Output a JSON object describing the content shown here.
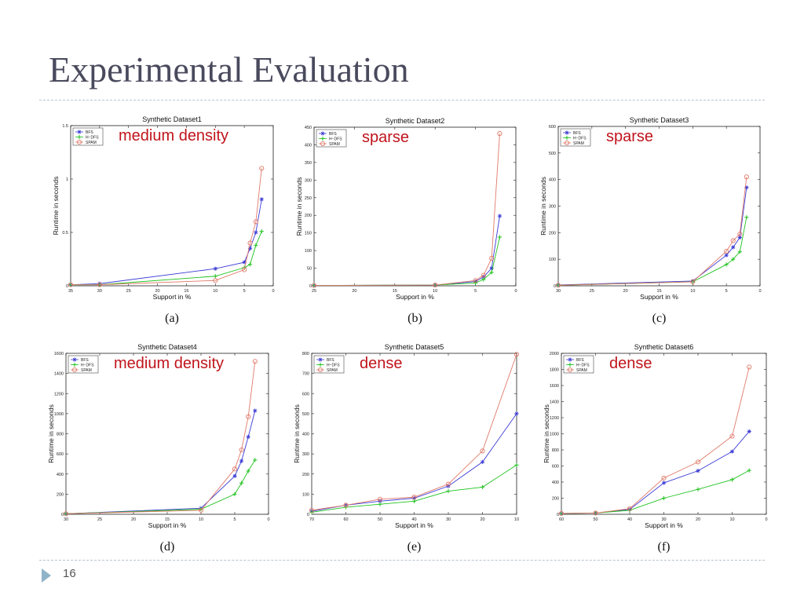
{
  "slide": {
    "title": "Experimental Evaluation",
    "page_number": "16"
  },
  "colors": {
    "BFS": "#3b3bd6",
    "H-DFS": "#1fc21f",
    "SPAM": "#e07a6a",
    "annotation": "#c0141c"
  },
  "chart_data": [
    {
      "type": "line",
      "title": "Synthetic Dataset1",
      "xlabel": "Support in %",
      "ylabel": "Runtime in seconds",
      "xlim": [
        35,
        0
      ],
      "ylim": [
        0,
        1.5
      ],
      "xticks": [
        35,
        30,
        25,
        20,
        15,
        10,
        5,
        0
      ],
      "yticks": [
        0,
        0.5,
        1,
        1.5
      ],
      "xticklabels": [
        "35",
        "30",
        "25",
        "20",
        "15",
        "10",
        "5",
        "0"
      ],
      "yticklabels": [
        "0",
        "0.5",
        "1",
        "1.5"
      ],
      "legend": [
        "BFS",
        "H−DFS",
        "SPAM"
      ],
      "legend_position": "top-left",
      "annotation": "medium density",
      "caption": "(a)",
      "series": [
        {
          "name": "BFS",
          "marker": "star",
          "points": [
            [
              35,
              0.01
            ],
            [
              30,
              0.02
            ],
            [
              10,
              0.16
            ],
            [
              5,
              0.22
            ],
            [
              4,
              0.35
            ],
            [
              3,
              0.5
            ],
            [
              2,
              0.81
            ]
          ]
        },
        {
          "name": "H−DFS",
          "marker": "plus",
          "points": [
            [
              35,
              0.01
            ],
            [
              30,
              0.01
            ],
            [
              10,
              0.09
            ],
            [
              5,
              0.17
            ],
            [
              4,
              0.2
            ],
            [
              3,
              0.38
            ],
            [
              2,
              0.51
            ]
          ]
        },
        {
          "name": "SPAM",
          "marker": "circle",
          "points": [
            [
              35,
              0.01
            ],
            [
              30,
              0.01
            ],
            [
              10,
              0.05
            ],
            [
              5,
              0.15
            ],
            [
              4,
              0.4
            ],
            [
              3,
              0.6
            ],
            [
              2,
              1.1
            ]
          ]
        }
      ]
    },
    {
      "type": "line",
      "title": "Synthetic Dataset2",
      "xlabel": "Support in %",
      "ylabel": "Runtime in seconds",
      "xlim": [
        25,
        0
      ],
      "ylim": [
        0,
        450
      ],
      "xticks": [
        25,
        20,
        15,
        10,
        5,
        0
      ],
      "yticks": [
        0,
        50,
        100,
        150,
        200,
        250,
        300,
        350,
        400,
        450
      ],
      "xticklabels": [
        "25",
        "20",
        "15",
        "10",
        "5",
        "0"
      ],
      "yticklabels": [
        "0",
        "50",
        "100",
        "150",
        "200",
        "250",
        "300",
        "350",
        "400",
        "450"
      ],
      "legend": [
        "BFS",
        "H−DFS",
        "SPAM"
      ],
      "legend_position": "top-left",
      "annotation": "sparse",
      "caption": "(b)",
      "series": [
        {
          "name": "BFS",
          "marker": "star",
          "points": [
            [
              25,
              1
            ],
            [
              10,
              2
            ],
            [
              5,
              12
            ],
            [
              4,
              25
            ],
            [
              3,
              50
            ],
            [
              2,
              198
            ]
          ]
        },
        {
          "name": "H−DFS",
          "marker": "plus",
          "points": [
            [
              25,
              1
            ],
            [
              10,
              2
            ],
            [
              5,
              8
            ],
            [
              4,
              18
            ],
            [
              3,
              38
            ],
            [
              2,
              138
            ]
          ]
        },
        {
          "name": "SPAM",
          "marker": "circle",
          "points": [
            [
              25,
              1
            ],
            [
              10,
              2
            ],
            [
              5,
              15
            ],
            [
              4,
              30
            ],
            [
              3,
              78
            ],
            [
              2,
              432
            ]
          ]
        }
      ]
    },
    {
      "type": "line",
      "title": "Synthetic Dataset3",
      "xlabel": "Support in %",
      "ylabel": "Runtime in seconds",
      "xlim": [
        30,
        0
      ],
      "ylim": [
        0,
        600
      ],
      "xticks": [
        30,
        25,
        20,
        15,
        10,
        5,
        0
      ],
      "yticks": [
        0,
        100,
        200,
        300,
        400,
        500,
        600
      ],
      "xticklabels": [
        "30",
        "25",
        "20",
        "15",
        "10",
        "5",
        "0"
      ],
      "yticklabels": [
        "0",
        "100",
        "200",
        "300",
        "400",
        "500",
        "600"
      ],
      "legend": [
        "BFS",
        "H−DFS",
        "SPAM"
      ],
      "legend_position": "top-left",
      "annotation": "sparse",
      "caption": "(c)",
      "series": [
        {
          "name": "BFS",
          "marker": "star",
          "points": [
            [
              30,
              3
            ],
            [
              10,
              18
            ],
            [
              5,
              115
            ],
            [
              4,
              145
            ],
            [
              3,
              182
            ],
            [
              2,
              370
            ]
          ]
        },
        {
          "name": "H−DFS",
          "marker": "plus",
          "points": [
            [
              30,
              2
            ],
            [
              10,
              15
            ],
            [
              5,
              80
            ],
            [
              4,
              100
            ],
            [
              3,
              128
            ],
            [
              2,
              258
            ]
          ]
        },
        {
          "name": "SPAM",
          "marker": "circle",
          "points": [
            [
              30,
              2
            ],
            [
              10,
              15
            ],
            [
              5,
              130
            ],
            [
              4,
              170
            ],
            [
              3,
              195
            ],
            [
              2,
              410
            ]
          ]
        }
      ]
    },
    {
      "type": "line",
      "title": "Synthetic Dataset4",
      "xlabel": "Support in %",
      "ylabel": "Runtime in seconds",
      "xlim": [
        30,
        0
      ],
      "ylim": [
        0,
        1600
      ],
      "xticks": [
        30,
        25,
        20,
        15,
        10,
        5,
        0
      ],
      "yticks": [
        0,
        200,
        400,
        600,
        800,
        1000,
        1200,
        1400,
        1600
      ],
      "xticklabels": [
        "30",
        "25",
        "20",
        "15",
        "10",
        "5",
        "0"
      ],
      "yticklabels": [
        "0",
        "200",
        "400",
        "600",
        "800",
        "1000",
        "1200",
        "1400",
        "1600"
      ],
      "legend": [
        "BFS",
        "H−DFS",
        "SPAM"
      ],
      "legend_position": "top-left",
      "annotation": "medium density",
      "caption": "(d)",
      "series": [
        {
          "name": "BFS",
          "marker": "star",
          "points": [
            [
              30,
              5
            ],
            [
              10,
              60
            ],
            [
              5,
              380
            ],
            [
              4,
              530
            ],
            [
              3,
              770
            ],
            [
              2,
              1030
            ]
          ]
        },
        {
          "name": "H−DFS",
          "marker": "plus",
          "points": [
            [
              30,
              5
            ],
            [
              10,
              50
            ],
            [
              5,
              200
            ],
            [
              4,
              310
            ],
            [
              3,
              430
            ],
            [
              2,
              540
            ]
          ]
        },
        {
          "name": "SPAM",
          "marker": "circle",
          "points": [
            [
              30,
              5
            ],
            [
              10,
              40
            ],
            [
              5,
              450
            ],
            [
              4,
              640
            ],
            [
              3,
              970
            ],
            [
              2,
              1520
            ]
          ]
        }
      ]
    },
    {
      "type": "line",
      "title": "Synthetic Dataset5",
      "xlabel": "Support in %",
      "ylabel": "Runtime in seconds",
      "xlim": [
        70,
        10
      ],
      "ylim": [
        0,
        800
      ],
      "xticks": [
        70,
        60,
        50,
        40,
        30,
        20,
        10
      ],
      "yticks": [
        0,
        100,
        200,
        300,
        400,
        500,
        600,
        700,
        800
      ],
      "xticklabels": [
        "70",
        "60",
        "50",
        "40",
        "30",
        "20",
        "10"
      ],
      "yticklabels": [
        "0",
        "100",
        "200",
        "300",
        "400",
        "500",
        "600",
        "700",
        "800"
      ],
      "legend": [
        "BFS",
        "H−DFS",
        "SPAM"
      ],
      "legend_position": "top-left",
      "annotation": "dense",
      "caption": "(e)",
      "series": [
        {
          "name": "BFS",
          "marker": "star",
          "points": [
            [
              70,
              15
            ],
            [
              60,
              45
            ],
            [
              50,
              65
            ],
            [
              40,
              80
            ],
            [
              30,
              140
            ],
            [
              20,
              260
            ],
            [
              10,
              500
            ]
          ]
        },
        {
          "name": "H−DFS",
          "marker": "plus",
          "points": [
            [
              70,
              10
            ],
            [
              60,
              35
            ],
            [
              50,
              50
            ],
            [
              40,
              65
            ],
            [
              30,
              115
            ],
            [
              20,
              135
            ],
            [
              10,
              245
            ]
          ]
        },
        {
          "name": "SPAM",
          "marker": "circle",
          "points": [
            [
              70,
              20
            ],
            [
              60,
              45
            ],
            [
              50,
              75
            ],
            [
              40,
              85
            ],
            [
              30,
              150
            ],
            [
              20,
              315
            ],
            [
              10,
              795
            ]
          ]
        }
      ]
    },
    {
      "type": "line",
      "title": "Synthetic Dataset6",
      "xlabel": "Support in %",
      "ylabel": "Runtime in seconds",
      "xlim": [
        60,
        0
      ],
      "ylim": [
        0,
        2000
      ],
      "xticks": [
        60,
        50,
        40,
        30,
        20,
        10,
        0
      ],
      "yticks": [
        0,
        200,
        400,
        600,
        800,
        1000,
        1200,
        1400,
        1600,
        1800,
        2000
      ],
      "xticklabels": [
        "60",
        "50",
        "40",
        "30",
        "20",
        "10",
        "0"
      ],
      "yticklabels": [
        "0",
        "200",
        "400",
        "600",
        "800",
        "1000",
        "1200",
        "1400",
        "1600",
        "1800",
        "2000"
      ],
      "legend": [
        "BFS",
        "H−DFS",
        "SPAM"
      ],
      "legend_position": "top-left",
      "annotation": "dense",
      "caption": "(f)",
      "series": [
        {
          "name": "BFS",
          "marker": "star",
          "points": [
            [
              60,
              10
            ],
            [
              50,
              15
            ],
            [
              40,
              60
            ],
            [
              30,
              390
            ],
            [
              20,
              540
            ],
            [
              10,
              780
            ],
            [
              5,
              1030
            ]
          ]
        },
        {
          "name": "H−DFS",
          "marker": "plus",
          "points": [
            [
              60,
              10
            ],
            [
              50,
              15
            ],
            [
              40,
              50
            ],
            [
              30,
              200
            ],
            [
              20,
              310
            ],
            [
              10,
              430
            ],
            [
              5,
              545
            ]
          ]
        },
        {
          "name": "SPAM",
          "marker": "circle",
          "points": [
            [
              60,
              10
            ],
            [
              50,
              15
            ],
            [
              40,
              70
            ],
            [
              30,
              450
            ],
            [
              20,
              650
            ],
            [
              10,
              970
            ],
            [
              5,
              1830
            ]
          ]
        }
      ]
    }
  ]
}
